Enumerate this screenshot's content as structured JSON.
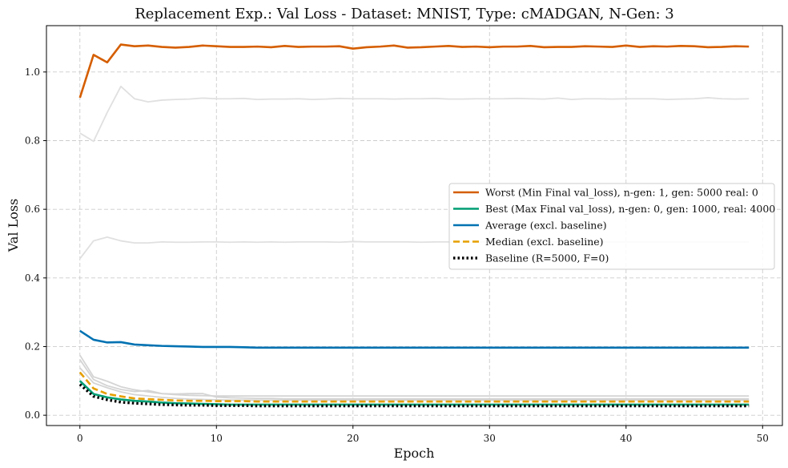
{
  "chart_data": {
    "type": "line",
    "title": "Replacement Exp.: Val Loss - Dataset: MNIST, Type: cMADGAN, N-Gen: 3",
    "xlabel": "Epoch",
    "ylabel": "Val Loss",
    "xlim": [
      -2.45,
      51.45
    ],
    "ylim": [
      -0.03,
      1.135
    ],
    "xticks": [
      0,
      10,
      20,
      30,
      40,
      50
    ],
    "yticks": [
      0.0,
      0.2,
      0.4,
      0.6,
      0.8,
      1.0
    ],
    "grid": true,
    "legend_position": "center-right",
    "background_series": [
      {
        "color": "#e0e0e0",
        "values": [
          0.822,
          0.798,
          0.882,
          0.958,
          0.922,
          0.913,
          0.918,
          0.92,
          0.921,
          0.924,
          0.922,
          0.922,
          0.923,
          0.92,
          0.921,
          0.921,
          0.922,
          0.92,
          0.921,
          0.923,
          0.922,
          0.922,
          0.922,
          0.921,
          0.922,
          0.922,
          0.923,
          0.921,
          0.921,
          0.922,
          0.922,
          0.922,
          0.923,
          0.922,
          0.921,
          0.924,
          0.92,
          0.922,
          0.922,
          0.921,
          0.922,
          0.922,
          0.922,
          0.92,
          0.921,
          0.922,
          0.925,
          0.922,
          0.921,
          0.922
        ]
      },
      {
        "color": "#e0e0e0",
        "values": [
          0.456,
          0.508,
          0.519,
          0.508,
          0.502,
          0.502,
          0.505,
          0.504,
          0.504,
          0.505,
          0.505,
          0.504,
          0.505,
          0.504,
          0.505,
          0.504,
          0.505,
          0.505,
          0.505,
          0.504,
          0.506,
          0.505,
          0.505,
          0.505,
          0.505,
          0.504,
          0.505,
          0.505,
          0.504,
          0.505,
          0.505,
          0.505,
          0.505,
          0.505,
          0.505,
          0.505,
          0.505,
          0.505,
          0.505,
          0.505,
          0.505,
          0.505,
          0.505,
          0.505,
          0.505,
          0.505,
          0.505,
          0.505,
          0.505,
          0.505
        ]
      },
      {
        "color": "#d4d4d4",
        "values": [
          0.175,
          0.112,
          0.099,
          0.083,
          0.074,
          0.068,
          0.063,
          0.06,
          0.058,
          0.057,
          0.056,
          0.056,
          0.056,
          0.056,
          0.056,
          0.056,
          0.056,
          0.056,
          0.056,
          0.056,
          0.056,
          0.056,
          0.056,
          0.056,
          0.056,
          0.056,
          0.056,
          0.056,
          0.056,
          0.056,
          0.056,
          0.056,
          0.056,
          0.056,
          0.056,
          0.056,
          0.056,
          0.056,
          0.056,
          0.056,
          0.056,
          0.056,
          0.056,
          0.056,
          0.056,
          0.056,
          0.056,
          0.056,
          0.056,
          0.056
        ]
      },
      {
        "color": "#d4d4d4",
        "values": [
          0.162,
          0.104,
          0.086,
          0.075,
          0.069,
          0.072,
          0.063,
          0.062,
          0.063,
          0.063,
          0.053,
          0.051,
          0.05,
          0.049,
          0.049,
          0.048,
          0.048,
          0.048,
          0.048,
          0.048,
          0.048,
          0.048,
          0.048,
          0.048,
          0.048,
          0.048,
          0.048,
          0.048,
          0.048,
          0.048,
          0.048,
          0.048,
          0.048,
          0.048,
          0.048,
          0.048,
          0.048,
          0.048,
          0.048,
          0.048,
          0.048,
          0.048,
          0.048,
          0.048,
          0.048,
          0.048,
          0.048,
          0.048,
          0.048,
          0.048
        ]
      },
      {
        "color": "#d4d4d4",
        "values": [
          0.138,
          0.094,
          0.08,
          0.068,
          0.06,
          0.056,
          0.052,
          0.049,
          0.047,
          0.046,
          0.045,
          0.044,
          0.044,
          0.044,
          0.044,
          0.044,
          0.044,
          0.044,
          0.044,
          0.044,
          0.044,
          0.044,
          0.044,
          0.044,
          0.044,
          0.044,
          0.044,
          0.044,
          0.044,
          0.044,
          0.044,
          0.044,
          0.044,
          0.044,
          0.044,
          0.044,
          0.044,
          0.044,
          0.044,
          0.044,
          0.044,
          0.044,
          0.044,
          0.044,
          0.044,
          0.044,
          0.044,
          0.044,
          0.044,
          0.044
        ]
      }
    ],
    "series": [
      {
        "name": "Worst (Min Final val_loss), n-gen: 1, gen: 5000 real: 0",
        "color": "#d55e00",
        "style": "solid",
        "width": 2.6,
        "values": [
          0.925,
          1.05,
          1.028,
          1.08,
          1.075,
          1.077,
          1.073,
          1.071,
          1.073,
          1.077,
          1.075,
          1.073,
          1.073,
          1.074,
          1.072,
          1.076,
          1.073,
          1.074,
          1.074,
          1.075,
          1.068,
          1.072,
          1.074,
          1.077,
          1.071,
          1.072,
          1.074,
          1.076,
          1.073,
          1.074,
          1.072,
          1.074,
          1.074,
          1.076,
          1.072,
          1.073,
          1.073,
          1.075,
          1.074,
          1.073,
          1.077,
          1.073,
          1.075,
          1.074,
          1.076,
          1.075,
          1.072,
          1.073,
          1.075,
          1.074
        ]
      },
      {
        "name": "Best (Max Final val_loss), n-gen: 0, gen: 1000, real: 4000",
        "color": "#009e73",
        "style": "solid",
        "width": 2.6,
        "values": [
          0.1,
          0.062,
          0.052,
          0.046,
          0.042,
          0.04,
          0.037,
          0.035,
          0.034,
          0.033,
          0.032,
          0.031,
          0.031,
          0.031,
          0.031,
          0.031,
          0.031,
          0.031,
          0.031,
          0.031,
          0.031,
          0.031,
          0.031,
          0.031,
          0.031,
          0.031,
          0.031,
          0.031,
          0.031,
          0.031,
          0.031,
          0.031,
          0.031,
          0.031,
          0.031,
          0.031,
          0.031,
          0.031,
          0.031,
          0.031,
          0.031,
          0.031,
          0.031,
          0.031,
          0.031,
          0.031,
          0.031,
          0.031,
          0.031,
          0.031
        ]
      },
      {
        "name": "Average (excl. baseline)",
        "color": "#0072b2",
        "style": "solid",
        "width": 2.6,
        "values": [
          0.246,
          0.22,
          0.212,
          0.213,
          0.206,
          0.204,
          0.202,
          0.201,
          0.2,
          0.199,
          0.199,
          0.199,
          0.198,
          0.197,
          0.197,
          0.197,
          0.197,
          0.197,
          0.197,
          0.197,
          0.197,
          0.197,
          0.197,
          0.197,
          0.197,
          0.197,
          0.197,
          0.197,
          0.197,
          0.197,
          0.197,
          0.197,
          0.197,
          0.197,
          0.197,
          0.197,
          0.197,
          0.197,
          0.197,
          0.197,
          0.197,
          0.197,
          0.197,
          0.197,
          0.197,
          0.197,
          0.197,
          0.197,
          0.197,
          0.197
        ]
      },
      {
        "name": "Median (excl. baseline)",
        "color": "#e69f00",
        "style": "dashed",
        "width": 2.6,
        "values": [
          0.125,
          0.078,
          0.062,
          0.055,
          0.049,
          0.047,
          0.045,
          0.043,
          0.042,
          0.042,
          0.041,
          0.041,
          0.041,
          0.04,
          0.04,
          0.04,
          0.04,
          0.04,
          0.04,
          0.04,
          0.04,
          0.04,
          0.04,
          0.04,
          0.04,
          0.04,
          0.04,
          0.04,
          0.04,
          0.04,
          0.04,
          0.04,
          0.04,
          0.04,
          0.04,
          0.04,
          0.04,
          0.04,
          0.04,
          0.04,
          0.04,
          0.04,
          0.04,
          0.04,
          0.04,
          0.04,
          0.04,
          0.04,
          0.04,
          0.04
        ]
      },
      {
        "name": "Baseline (R=5000, F=0)",
        "color": "#000000",
        "style": "dotted",
        "width": 3.4,
        "values": [
          0.09,
          0.055,
          0.045,
          0.038,
          0.035,
          0.033,
          0.031,
          0.03,
          0.029,
          0.029,
          0.028,
          0.028,
          0.028,
          0.027,
          0.027,
          0.027,
          0.027,
          0.027,
          0.027,
          0.027,
          0.027,
          0.027,
          0.027,
          0.027,
          0.027,
          0.027,
          0.027,
          0.027,
          0.027,
          0.027,
          0.027,
          0.027,
          0.027,
          0.027,
          0.027,
          0.027,
          0.027,
          0.027,
          0.027,
          0.027,
          0.027,
          0.027,
          0.027,
          0.027,
          0.027,
          0.027,
          0.027,
          0.027,
          0.027,
          0.027
        ]
      }
    ]
  }
}
